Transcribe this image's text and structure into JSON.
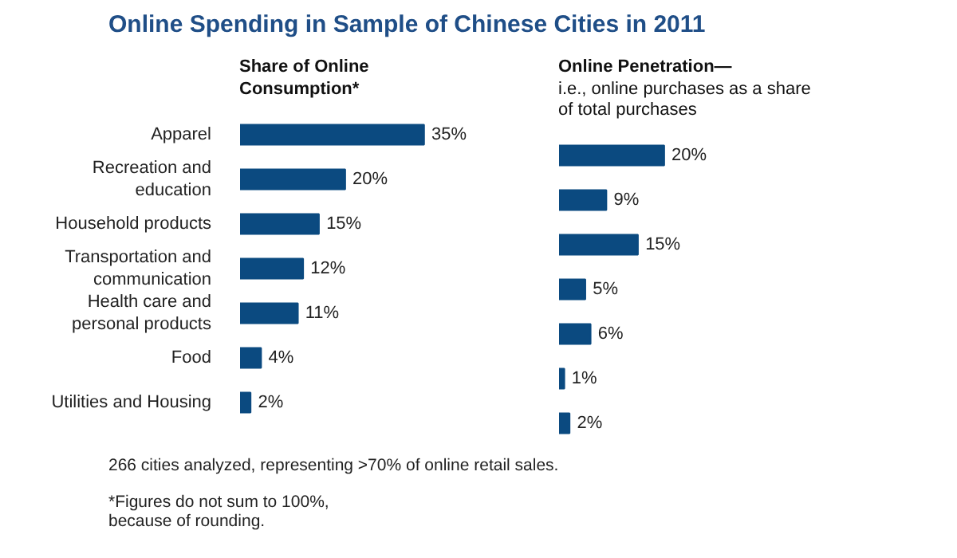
{
  "chart_data": [
    {
      "type": "bar",
      "orientation": "horizontal",
      "title": "Online Spending in Sample of Chinese Cities in 2011",
      "subtitle": "Share of Online Consumption*",
      "categories": [
        "Apparel",
        "Recreation and education",
        "Household products",
        "Transportation and communication",
        "Health care and personal products",
        "Food",
        "Utilities and Housing"
      ],
      "values": [
        35,
        20,
        15,
        12,
        11,
        4,
        2
      ],
      "color": "#0b4a80",
      "value_labels": [
        "35%",
        "20%",
        "15%",
        "12%",
        "11%",
        "4%",
        "2%"
      ],
      "tick_labels": "y",
      "grid": false,
      "annotations": [
        "266 cities analyzed, representing >70% of online retail sales.",
        "*Figures do not sum to 100%, because of rounding."
      ]
    },
    {
      "type": "bar",
      "orientation": "horizontal",
      "title": "Online Penetration—",
      "subtitle": "i.e., online purchases as a share of total purchases",
      "categories": [
        "Apparel",
        "Recreation and education",
        "Household products",
        "Transportation and communication",
        "Health care and personal products",
        "Food",
        "Utilities and Housing"
      ],
      "values": [
        20,
        9,
        15,
        5,
        6,
        1,
        2
      ],
      "color": "#0b4a80",
      "value_labels": [
        "20%",
        "9%",
        "15%",
        "5%",
        "6%",
        "1%",
        "2%"
      ],
      "tick_labels": false,
      "grid": false
    }
  ]
}
